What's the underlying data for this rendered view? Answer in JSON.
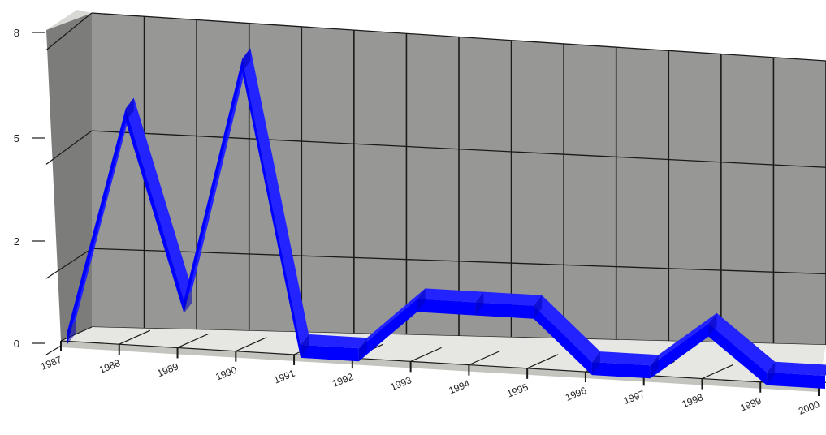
{
  "chart_data": {
    "type": "line",
    "title": "",
    "xlabel": "",
    "ylabel": "",
    "categories": [
      "1987",
      "1988",
      "1989",
      "1990",
      "1991",
      "1992",
      "1993",
      "1994",
      "1995",
      "1996",
      "1997",
      "1998",
      "1999",
      "2000"
    ],
    "series": [
      {
        "values": [
          0,
          6,
          1,
          7.5,
          0,
          0,
          1.4,
          1.4,
          1.4,
          0,
          0,
          1.2,
          0,
          0
        ]
      }
    ],
    "y_ticks": [
      "0",
      "2",
      "5",
      "8"
    ],
    "ylim": [
      0,
      8
    ],
    "grid": true,
    "style": "3d",
    "colors": {
      "line_front": "#0000ff",
      "line_top": "#2323ff",
      "line_side": "#0000b8",
      "back_wall": "#979795",
      "side_wall": "#7c7c7a",
      "floor": "#e6e6e2",
      "grid": "#1a1a1a"
    }
  }
}
